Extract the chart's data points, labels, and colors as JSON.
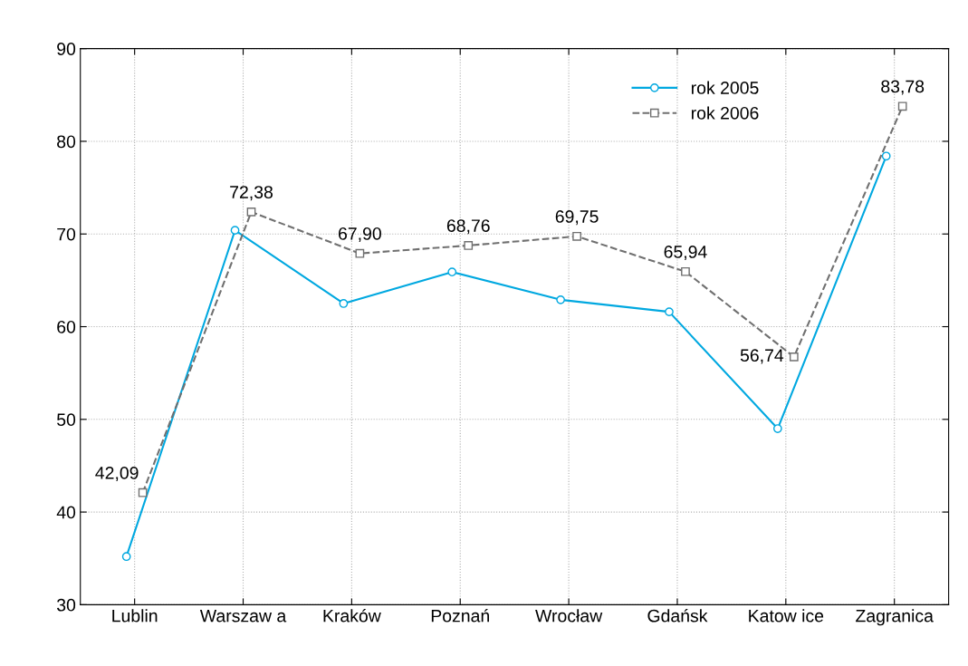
{
  "chart_data": {
    "type": "line",
    "categories": [
      "Lublin",
      "Warszaw a",
      "Kraków",
      "Poznań",
      "Wrocław",
      "Gdańsk",
      "Katow ice",
      "Zagranica"
    ],
    "series": [
      {
        "name": "rok 2005",
        "color": "#00a8e0",
        "marker": "circle",
        "line_style": "solid",
        "values": [
          35.2,
          70.4,
          62.5,
          65.9,
          62.9,
          61.6,
          49.0,
          78.4
        ]
      },
      {
        "name": "rok 2006",
        "color": "#707070",
        "marker": "square",
        "line_style": "dashed",
        "values": [
          42.09,
          72.38,
          67.9,
          68.76,
          69.75,
          65.94,
          56.74,
          83.78
        ],
        "value_labels": [
          "42,09",
          "72,38",
          "67,90",
          "68,76",
          "69,75",
          "65,94",
          "56,74",
          "83,78"
        ]
      }
    ],
    "ylim": [
      30,
      90
    ],
    "yticks": [
      30,
      40,
      50,
      60,
      70,
      80,
      90
    ],
    "grid": true,
    "legend": "top right"
  }
}
